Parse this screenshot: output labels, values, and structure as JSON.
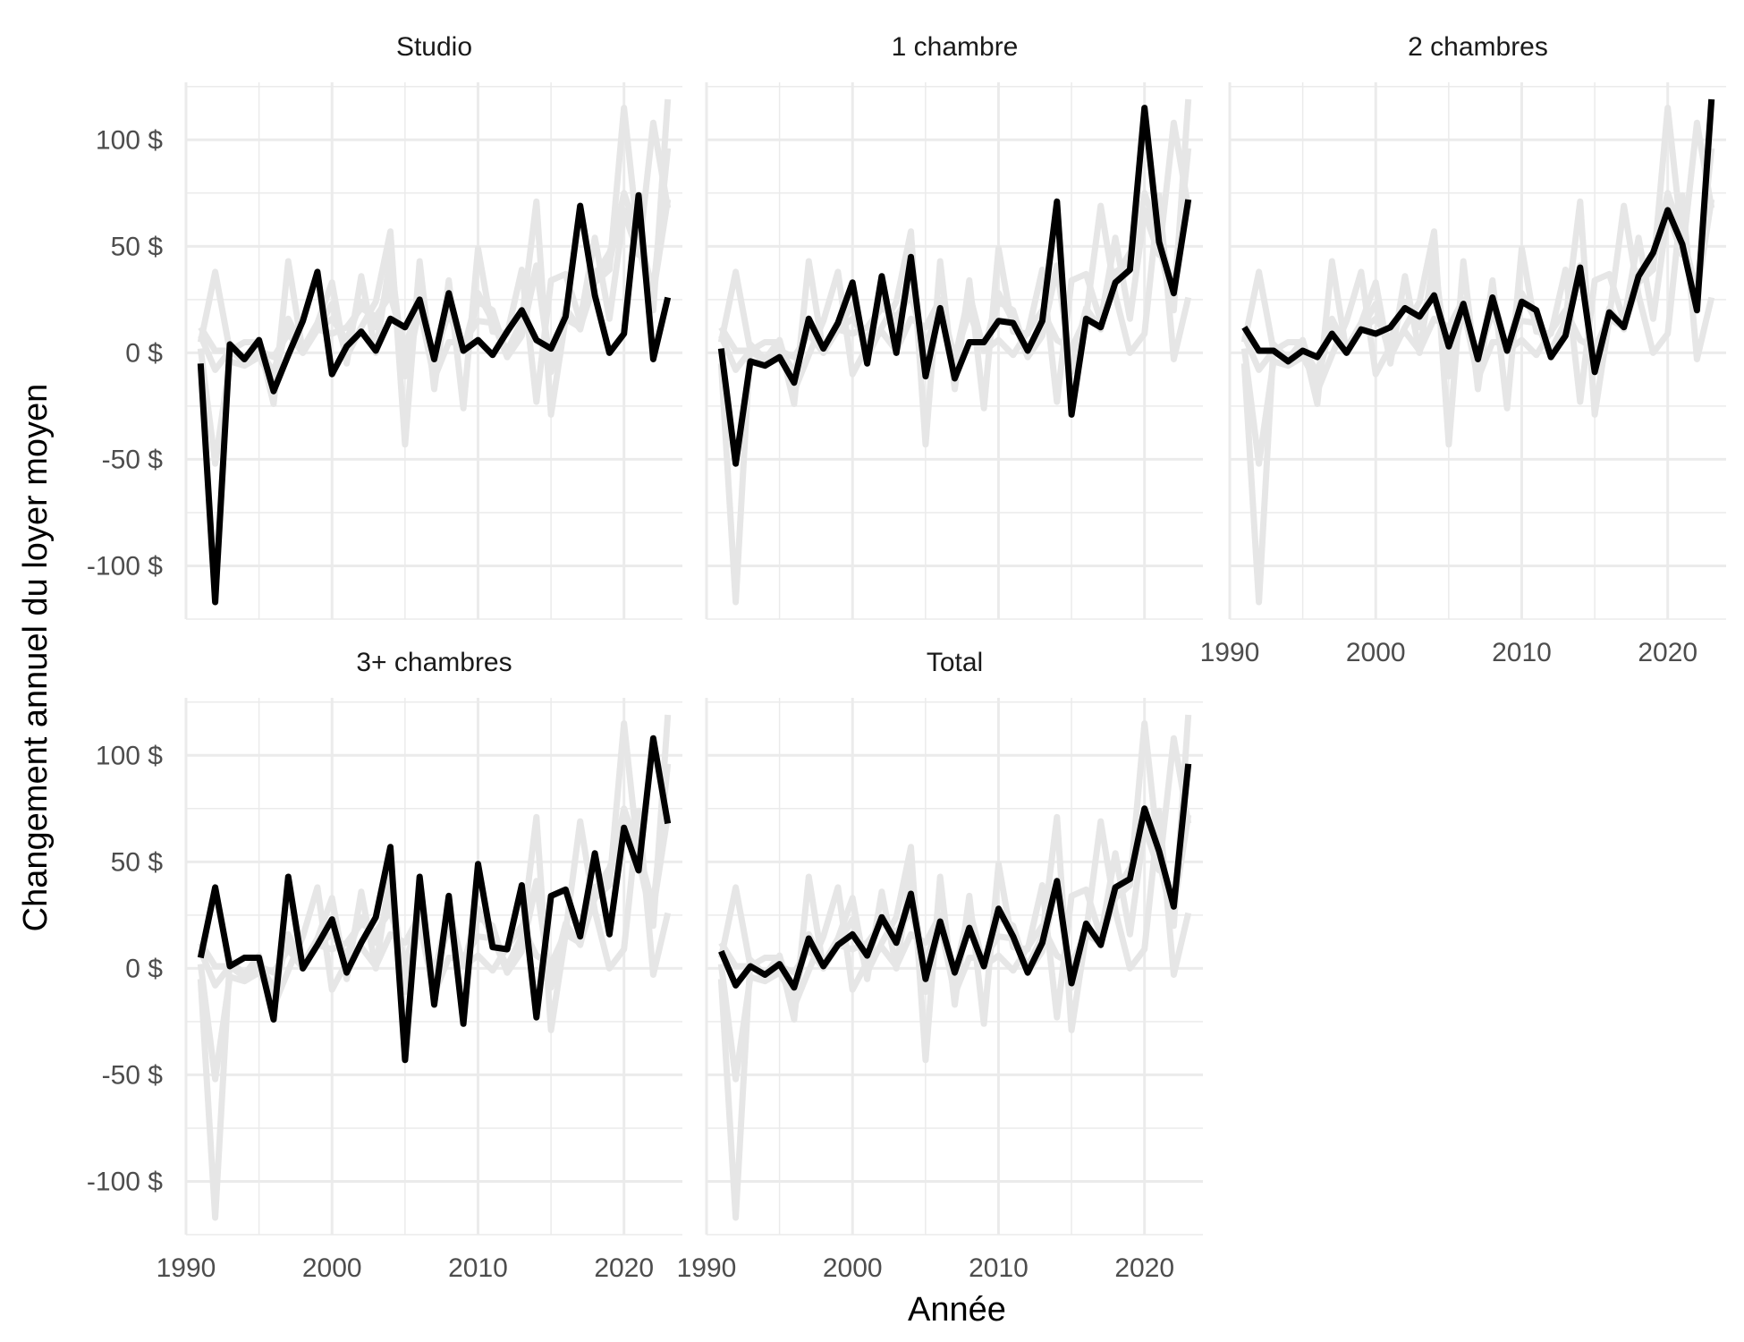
{
  "chart_data": {
    "type": "line",
    "xlabel": "Année",
    "ylabel": "Changement annuel du loyer moyen",
    "xlim": [
      1990,
      2024
    ],
    "ylim": [
      -125,
      127
    ],
    "x_ticks": [
      1990,
      2000,
      2010,
      2020
    ],
    "y_ticks": [
      -100,
      -50,
      0,
      50,
      100
    ],
    "y_tick_labels": [
      "-100 $",
      "-50 $",
      "0 $",
      "50 $",
      "100 $"
    ],
    "grid": true,
    "facets": [
      "Studio",
      "1 chambre",
      "2 chambres",
      "3+ chambres",
      "Total"
    ],
    "highlight_color": "#000000",
    "background_color": "#e6e6e6",
    "x": [
      1991,
      1992,
      1993,
      1994,
      1995,
      1996,
      1997,
      1998,
      1999,
      2000,
      2001,
      2002,
      2003,
      2004,
      2005,
      2006,
      2007,
      2008,
      2009,
      2010,
      2011,
      2012,
      2013,
      2014,
      2015,
      2016,
      2017,
      2018,
      2019,
      2020,
      2021,
      2022,
      2023
    ],
    "series": [
      {
        "name": "Studio",
        "values": [
          -5,
          -117,
          4,
          -3,
          6,
          -18,
          -1,
          15,
          38,
          -10,
          3,
          10,
          1,
          16,
          12,
          25,
          -3,
          28,
          1,
          6,
          -1,
          10,
          20,
          6,
          2,
          17,
          69,
          27,
          0,
          9,
          74,
          -3,
          26
        ]
      },
      {
        "name": "1 chambre",
        "values": [
          2,
          -52,
          -4,
          -6,
          -2,
          -14,
          16,
          2,
          14,
          33,
          -5,
          36,
          0,
          45,
          -11,
          21,
          -12,
          5,
          5,
          15,
          14,
          1,
          15,
          71,
          -29,
          16,
          12,
          33,
          39,
          115,
          52,
          28,
          72
        ]
      },
      {
        "name": "2 chambres",
        "values": [
          12,
          1,
          1,
          -4,
          1,
          -2,
          9,
          0,
          11,
          9,
          12,
          21,
          17,
          27,
          3,
          23,
          -3,
          26,
          1,
          24,
          20,
          -2,
          8,
          40,
          -9,
          19,
          12,
          36,
          47,
          67,
          51,
          20,
          119
        ]
      },
      {
        "name": "3+ chambres",
        "values": [
          5,
          38,
          1,
          5,
          5,
          -24,
          43,
          0,
          11,
          23,
          -2,
          12,
          24,
          57,
          -43,
          43,
          -17,
          34,
          -26,
          49,
          10,
          9,
          39,
          -23,
          34,
          37,
          15,
          54,
          16,
          66,
          46,
          108,
          68
        ]
      },
      {
        "name": "Total",
        "values": [
          8,
          -8,
          1,
          -3,
          2,
          -9,
          14,
          1,
          11,
          16,
          6,
          24,
          12,
          35,
          -5,
          22,
          -2,
          19,
          1,
          28,
          15,
          -2,
          12,
          41,
          -7,
          21,
          11,
          38,
          42,
          75,
          55,
          29,
          96
        ]
      }
    ]
  }
}
